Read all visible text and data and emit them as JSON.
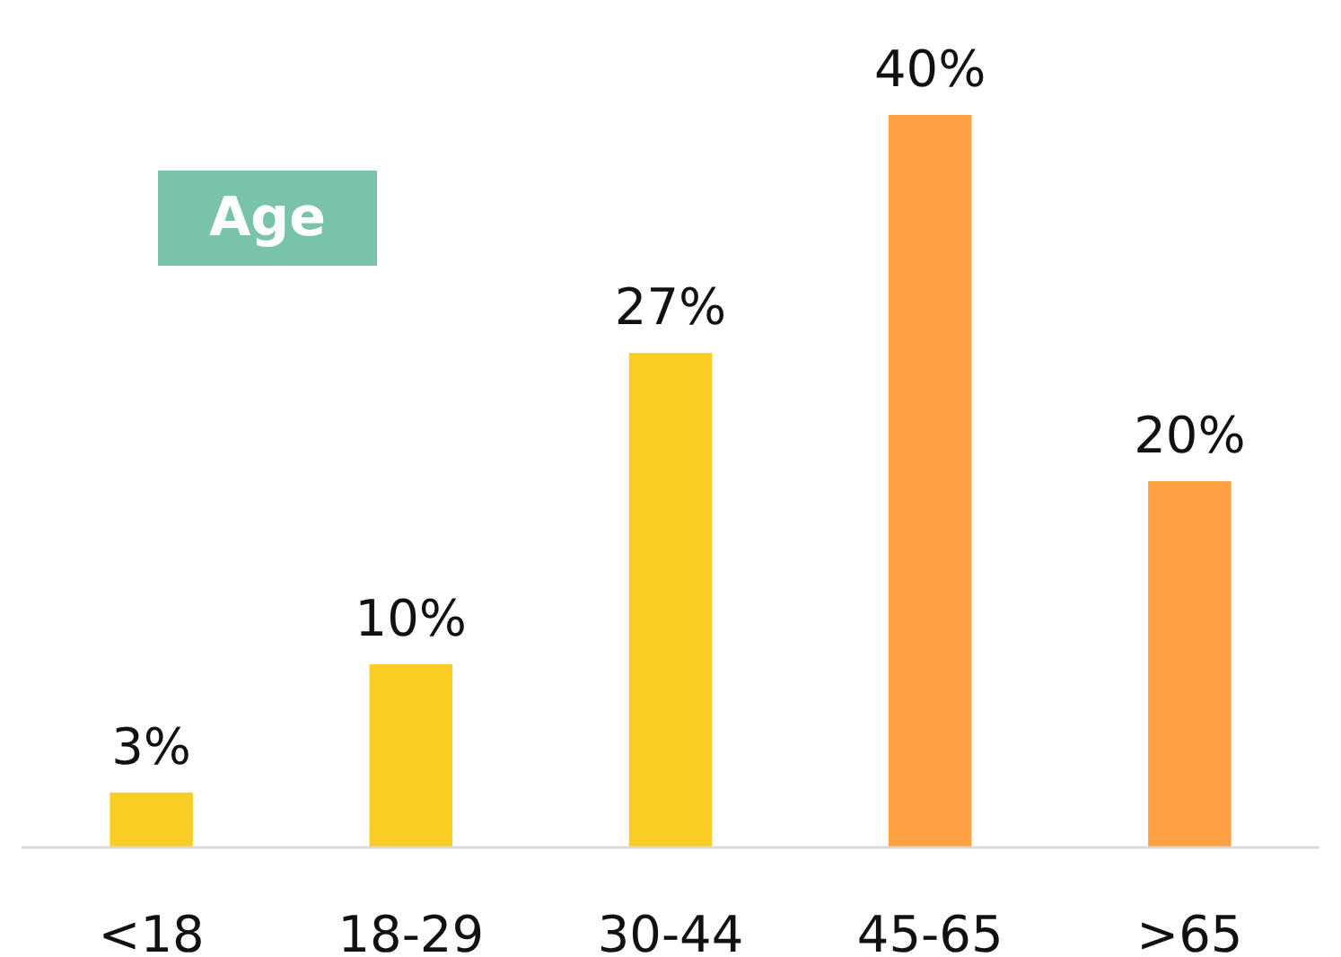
{
  "chart_data": {
    "type": "bar",
    "title": "Age",
    "categories": [
      "<18",
      "18-29",
      "30-44",
      "45-65",
      ">65"
    ],
    "values": [
      3,
      10,
      27,
      40,
      20
    ],
    "colors": [
      "#fbcd23",
      "#fbcd23",
      "#fbcd23",
      "#ffa044",
      "#ffa044"
    ],
    "data_labels": true,
    "value_labels": [
      "3%",
      "10%",
      "27%",
      "40%",
      "20%"
    ]
  }
}
